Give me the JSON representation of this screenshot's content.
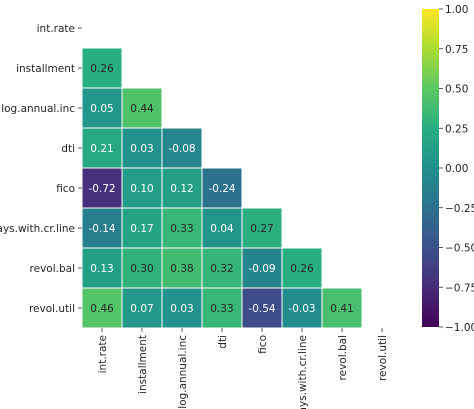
{
  "chart_data": {
    "type": "heatmap",
    "variables": [
      "int.rate",
      "installment",
      "log.annual.inc",
      "dti",
      "fico",
      "days.with.cr.line",
      "revol.bal",
      "revol.util"
    ],
    "matrix": [
      [
        null,
        null,
        null,
        null,
        null,
        null,
        null,
        null
      ],
      [
        0.26,
        null,
        null,
        null,
        null,
        null,
        null,
        null
      ],
      [
        0.05,
        0.44,
        null,
        null,
        null,
        null,
        null,
        null
      ],
      [
        0.21,
        0.03,
        -0.08,
        null,
        null,
        null,
        null,
        null
      ],
      [
        -0.72,
        0.1,
        0.12,
        -0.24,
        null,
        null,
        null,
        null
      ],
      [
        -0.14,
        0.17,
        0.33,
        0.04,
        0.27,
        null,
        null,
        null
      ],
      [
        0.13,
        0.3,
        0.38,
        0.32,
        -0.09,
        0.26,
        null,
        null
      ],
      [
        0.46,
        0.07,
        0.03,
        0.33,
        -0.54,
        -0.03,
        0.41,
        null
      ]
    ],
    "labels": [
      [
        "",
        "",
        "",
        "",
        "",
        "",
        "",
        ""
      ],
      [
        "0.26",
        "",
        "",
        "",
        "",
        "",
        "",
        ""
      ],
      [
        "0.05",
        "0.44",
        "",
        "",
        "",
        "",
        "",
        ""
      ],
      [
        "0.21",
        "0.03",
        "-0.08",
        "",
        "",
        "",
        "",
        ""
      ],
      [
        "-0.72",
        "0.10",
        "0.12",
        "-0.24",
        "",
        "",
        "",
        ""
      ],
      [
        "-0.14",
        "0.17",
        "0.33",
        "0.04",
        "0.27",
        "",
        "",
        ""
      ],
      [
        "0.13",
        "0.30",
        "0.38",
        "0.32",
        "-0.09",
        "0.26",
        "",
        ""
      ],
      [
        "0.46",
        "0.07",
        "0.03",
        "0.33",
        "-0.54",
        "-0.03",
        "0.41",
        ""
      ]
    ],
    "colormap": "viridis",
    "vmin": -1.0,
    "vmax": 1.0,
    "colorbar_ticks": [
      1.0,
      0.75,
      0.5,
      0.25,
      0.0,
      -0.25,
      -0.5,
      -0.75,
      -1.0
    ],
    "colorbar_tick_labels": [
      "1.00",
      "0.75",
      "0.50",
      "0.25",
      "0.00",
      "−0.25",
      "−0.50",
      "−0.75",
      "−1.00"
    ],
    "mask": "upper-triangle-including-diagonal"
  }
}
